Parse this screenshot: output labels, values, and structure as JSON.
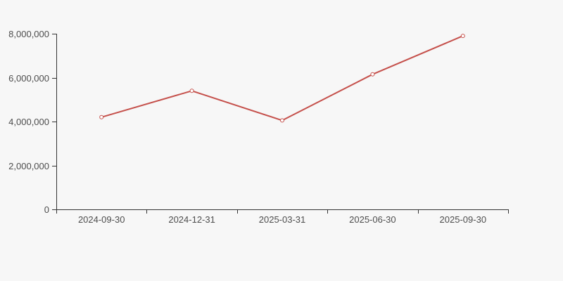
{
  "page": {
    "background_color": "#f7f7f7"
  },
  "chart_data": {
    "type": "line",
    "title": "",
    "xlabel": "",
    "ylabel": "",
    "categories": [
      "2024-09-30",
      "2024-12-31",
      "2025-03-31",
      "2025-06-30",
      "2025-09-30"
    ],
    "series": [
      {
        "name": "value",
        "values": [
          4200000,
          5400000,
          4050000,
          6150000,
          7900000
        ]
      }
    ],
    "ylim": [
      0,
      8000000
    ],
    "y_ticks": [
      0,
      2000000,
      4000000,
      6000000,
      8000000
    ],
    "y_tick_labels": [
      "0",
      "2,000,000",
      "4,000,000",
      "6,000,000",
      "8,000,000"
    ],
    "grid": false,
    "legend_position": "none",
    "line_color": "#c5504b",
    "marker_style": "open-circle",
    "marker_fill": "#ffffff",
    "axis_color": "#333333",
    "tick_label_color": "#4d4d4d",
    "background_color": "#f7f7f7"
  }
}
